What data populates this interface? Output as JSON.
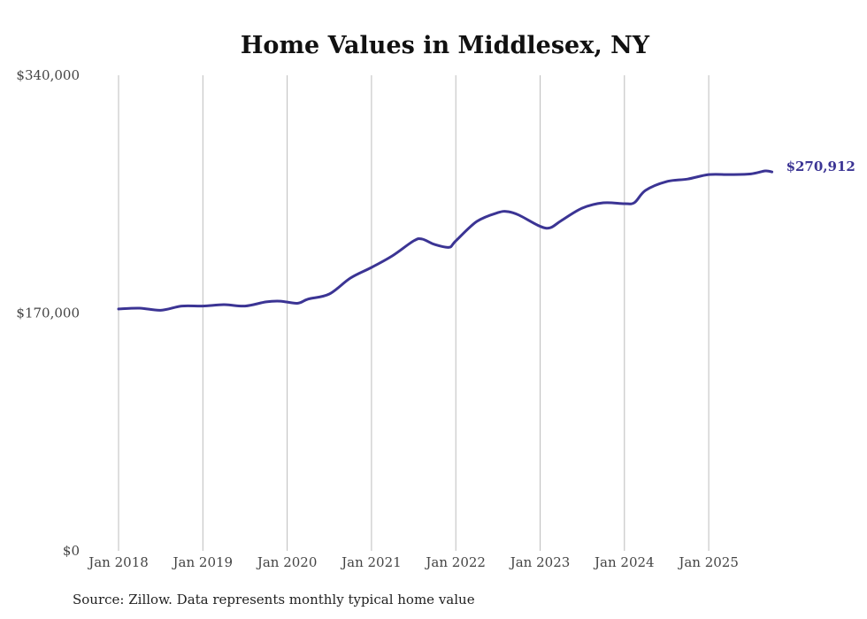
{
  "chart_data": {
    "type": "line",
    "title": "Home Values in Middlesex, NY",
    "xlabel": "",
    "ylabel": "",
    "ylim": [
      0,
      340000
    ],
    "xlim": [
      2018,
      2025.75
    ],
    "y_ticks": [
      {
        "value": 0,
        "label": "$0"
      },
      {
        "value": 170000,
        "label": "$170,000"
      },
      {
        "value": 340000,
        "label": "$340,000"
      }
    ],
    "x_ticks": [
      {
        "value": 2018,
        "label": "Jan 2018"
      },
      {
        "value": 2019,
        "label": "Jan 2019"
      },
      {
        "value": 2020,
        "label": "Jan 2020"
      },
      {
        "value": 2021,
        "label": "Jan 2021"
      },
      {
        "value": 2022,
        "label": "Jan 2022"
      },
      {
        "value": 2023,
        "label": "Jan 2023"
      },
      {
        "value": 2024,
        "label": "Jan 2024"
      },
      {
        "value": 2025,
        "label": "Jan 2025"
      }
    ],
    "grid": "vertical",
    "series": [
      {
        "name": "Typical home value",
        "color": "#3b3494",
        "x": [
          2018,
          2018.25,
          2018.5,
          2018.75,
          2019,
          2019.25,
          2019.5,
          2019.75,
          2019.92,
          2020.12,
          2020.25,
          2020.5,
          2020.75,
          2021,
          2021.25,
          2021.5,
          2021.6,
          2021.75,
          2021.92,
          2022,
          2022.25,
          2022.5,
          2022.62,
          2022.75,
          2023,
          2023.12,
          2023.25,
          2023.5,
          2023.75,
          2024,
          2024.12,
          2024.25,
          2024.5,
          2024.75,
          2025,
          2025.25,
          2025.5,
          2025.67,
          2025.75
        ],
        "values": [
          172900,
          173500,
          172000,
          175000,
          175000,
          176000,
          175000,
          178000,
          178500,
          177000,
          180000,
          183600,
          195000,
          202600,
          211000,
          221600,
          222900,
          219000,
          217000,
          221600,
          235500,
          241800,
          242500,
          240000,
          232000,
          231000,
          236000,
          245000,
          248800,
          248200,
          249000,
          257700,
          264000,
          265800,
          269000,
          269000,
          269500,
          271600,
          270912
        ]
      }
    ],
    "end_label": "$270,912"
  },
  "footer": {
    "source": "Source: Zillow. Data represents monthly typical home value"
  }
}
